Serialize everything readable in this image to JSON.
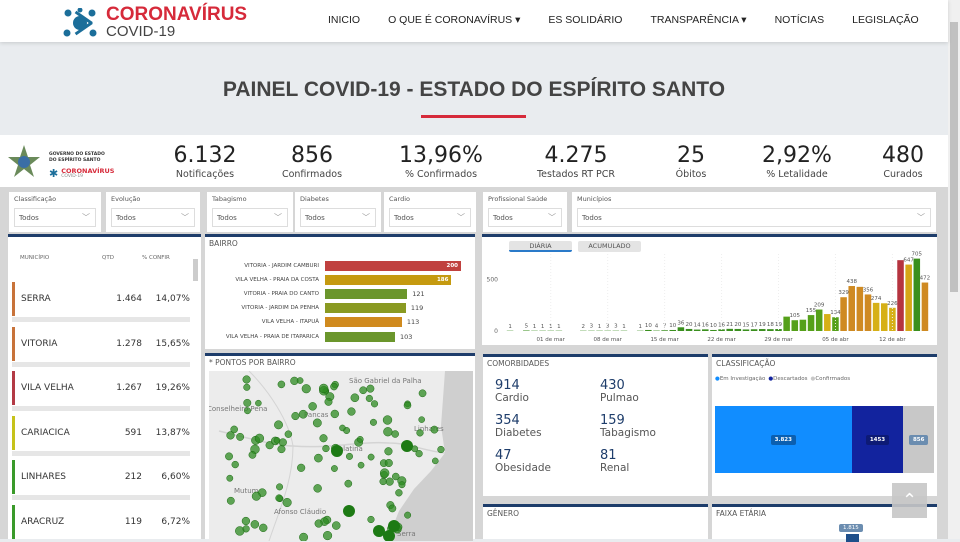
{
  "header": {
    "brand": "CORONAVÍRUS",
    "sub": "COVID-19",
    "nav": [
      "INICIO",
      "O QUE É CORONAVÍRUS ▾",
      "ES SOLIDÁRIO",
      "TRANSPARÊNCIA ▾",
      "NOTÍCIAS",
      "LEGISLAÇÃO"
    ]
  },
  "page_title": "PAINEL COVID-19 - ESTADO DO ESPÍRITO SANTO",
  "gov": {
    "line1": "GOVERNO DO ESTADO",
    "line2": "DO ESPÍRITO SANTO",
    "brand": "CORONAVÍRUS",
    "sub": "COVID-19"
  },
  "kpis": [
    {
      "value": "6.132",
      "label": "Notificações"
    },
    {
      "value": "856",
      "label": "Confirmados"
    },
    {
      "value": "13,96%",
      "label": "% Confirmados"
    },
    {
      "value": "4.275",
      "label": "Testados RT PCR"
    },
    {
      "value": "25",
      "label": "Óbitos"
    },
    {
      "value": "2,92%",
      "label": "% Letalidade"
    },
    {
      "value": "480",
      "label": "Curados"
    }
  ],
  "filters": [
    {
      "label": "Classificação",
      "value": "Todos"
    },
    {
      "label": "Evolução",
      "value": "Todos"
    },
    {
      "label": "Tabagismo",
      "value": "Todos"
    },
    {
      "label": "Diabetes",
      "value": "Todos"
    },
    {
      "label": "Cardio",
      "value": "Todos"
    },
    {
      "label": "Profissional Saúde",
      "value": "Todos"
    },
    {
      "label": "Municípios",
      "value": "Todos"
    }
  ],
  "municipios": {
    "headers": [
      "MUNICÍPIO",
      "QTD",
      "% CONFIR"
    ],
    "rows": [
      {
        "name": "SERRA",
        "qtd": "1.464",
        "pct": "14,07%",
        "color": "#c8733a"
      },
      {
        "name": "VITORIA",
        "qtd": "1.278",
        "pct": "15,65%",
        "color": "#c8733a"
      },
      {
        "name": "VILA VELHA",
        "qtd": "1.267",
        "pct": "19,26%",
        "color": "#b33a45"
      },
      {
        "name": "CARIACICA",
        "qtd": "591",
        "pct": "13,87%",
        "color": "#c6c21a"
      },
      {
        "name": "LINHARES",
        "qtd": "212",
        "pct": "6,60%",
        "color": "#3a9a2a"
      },
      {
        "name": "ARACRUZ",
        "qtd": "119",
        "pct": "6,72%",
        "color": "#3a9a2a"
      }
    ]
  },
  "bairro": {
    "title": "BAIRRO",
    "rows": [
      {
        "name": "VITORIA - JARDIM CAMBURI",
        "value": 200,
        "color": "#c0413f"
      },
      {
        "name": "VILA VELHA - PRAIA DA COSTA",
        "value": 186,
        "color": "#c59a10"
      },
      {
        "name": "VITORIA - PRAIA DO CANTO",
        "value": 121,
        "color": "#6b962c"
      },
      {
        "name": "VITORIA - JARDIM DA PENHA",
        "value": 119,
        "color": "#8a9a22"
      },
      {
        "name": "VILA VELHA - ITAPUÃ",
        "value": 113,
        "color": "#d08a1e"
      },
      {
        "name": "VILA VELHA - PRAIA DE ITAPARICA",
        "value": 103,
        "color": "#6b962c"
      }
    ]
  },
  "chart_data": {
    "type": "bar",
    "tabs": [
      "DIÁRIA",
      "ACUMULADO"
    ],
    "active_tab": "DIÁRIA",
    "start_date": "2020-02-25",
    "yticks": [
      "0",
      "500"
    ],
    "ylim": [
      0,
      750
    ],
    "xticks": [
      "01 de mar",
      "08 de mar",
      "15 de mar",
      "22 de mar",
      "29 de mar",
      "05 de abr",
      "12 de abr"
    ],
    "values": [
      1,
      0,
      5,
      1,
      1,
      1,
      1,
      0,
      0,
      2,
      3,
      1,
      3,
      3,
      1,
      0,
      1,
      10,
      4,
      7,
      10,
      36,
      20,
      14,
      16,
      10,
      16,
      21,
      20,
      15,
      17,
      19,
      18,
      19,
      140,
      105,
      110,
      155,
      209,
      165,
      134,
      329,
      438,
      430,
      356,
      274,
      270,
      226,
      690,
      647,
      705,
      472
    ],
    "labels": [
      "1",
      "",
      "5",
      "1",
      "1",
      "1",
      "1",
      "",
      "",
      "2",
      "3",
      "1",
      "3",
      "3",
      "1",
      "",
      "1",
      "10",
      "4",
      "7",
      "10",
      "36",
      "20",
      "14",
      "16",
      "10",
      "16",
      "21",
      "20",
      "15",
      "17",
      "19",
      "18",
      "19",
      "",
      "105",
      "",
      "155",
      "209",
      "",
      "134",
      "329",
      "438",
      "",
      "356",
      "274",
      "",
      "226",
      "",
      "647",
      "705",
      "472"
    ]
  },
  "map": {
    "title": "* PONTOS POR BAIRRO",
    "places": [
      "São Gabriel da Palha",
      "Conselheiro Pena",
      "Pancas",
      "Linhares",
      "Colatina",
      "Mutum",
      "Afonso Cláudio",
      "Serra"
    ]
  },
  "comorbidades": {
    "title": "COMORBIDADES",
    "items": [
      {
        "value": "914",
        "label": "Cardio"
      },
      {
        "value": "430",
        "label": "Pulmao"
      },
      {
        "value": "354",
        "label": "Diabetes"
      },
      {
        "value": "159",
        "label": "Tabagismo"
      },
      {
        "value": "47",
        "label": "Obesidade"
      },
      {
        "value": "81",
        "label": "Renal"
      }
    ]
  },
  "classificacao": {
    "title": "CLASSIFICAÇÃO",
    "legend": [
      {
        "label": "Em Investigação",
        "color": "#118dff"
      },
      {
        "label": "Descartados",
        "color": "#12239e"
      },
      {
        "label": "Confirmados",
        "color": "#c8c8c8"
      }
    ],
    "values": [
      {
        "label": "3.823",
        "value": 3823
      },
      {
        "label": "1453",
        "value": 1453
      },
      {
        "label": "856",
        "value": 856
      }
    ]
  },
  "genero": {
    "title": "GÊNERO"
  },
  "faixa": {
    "title": "FAIXA ETÁRIA",
    "top_label": "1.815"
  }
}
